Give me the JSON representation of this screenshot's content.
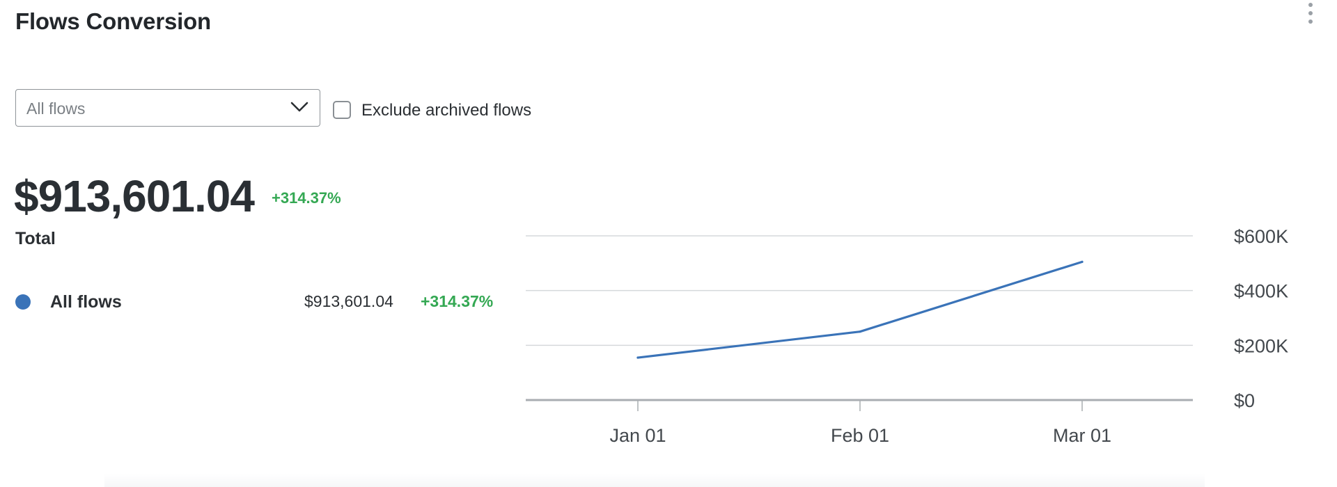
{
  "header": {
    "title": "Flows Conversion",
    "menu_icon": "kebab-menu-icon"
  },
  "filters": {
    "flow_select_value": "All flows",
    "chevron_icon": "chevron-down-icon",
    "exclude_archived_label": "Exclude archived flows",
    "exclude_archived_checked": false
  },
  "summary": {
    "total_value": "$913,601.04",
    "total_change": "+314.37%",
    "total_label": "Total"
  },
  "legend": {
    "items": [
      {
        "name": "All flows",
        "value": "$913,601.04",
        "change": "+314.37%",
        "color": "#3a73b8"
      }
    ]
  },
  "colors": {
    "series": "#3a73b8",
    "positive_change": "#34a853",
    "gridline": "#d5d8db",
    "baseline": "#a9adb1"
  },
  "chart_data": {
    "type": "line",
    "x": [
      "Jan 01",
      "Feb 01",
      "Mar 01"
    ],
    "series": [
      {
        "name": "All flows",
        "values": [
          155000,
          250000,
          505000
        ]
      }
    ],
    "y_ticks": [
      0,
      200000,
      400000,
      600000
    ],
    "y_tick_labels": [
      "$0",
      "$200K",
      "$400K",
      "$600K"
    ],
    "ylim": [
      0,
      600000
    ],
    "y_axis_side": "right",
    "grid": true,
    "title": "",
    "xlabel": "",
    "ylabel": ""
  }
}
